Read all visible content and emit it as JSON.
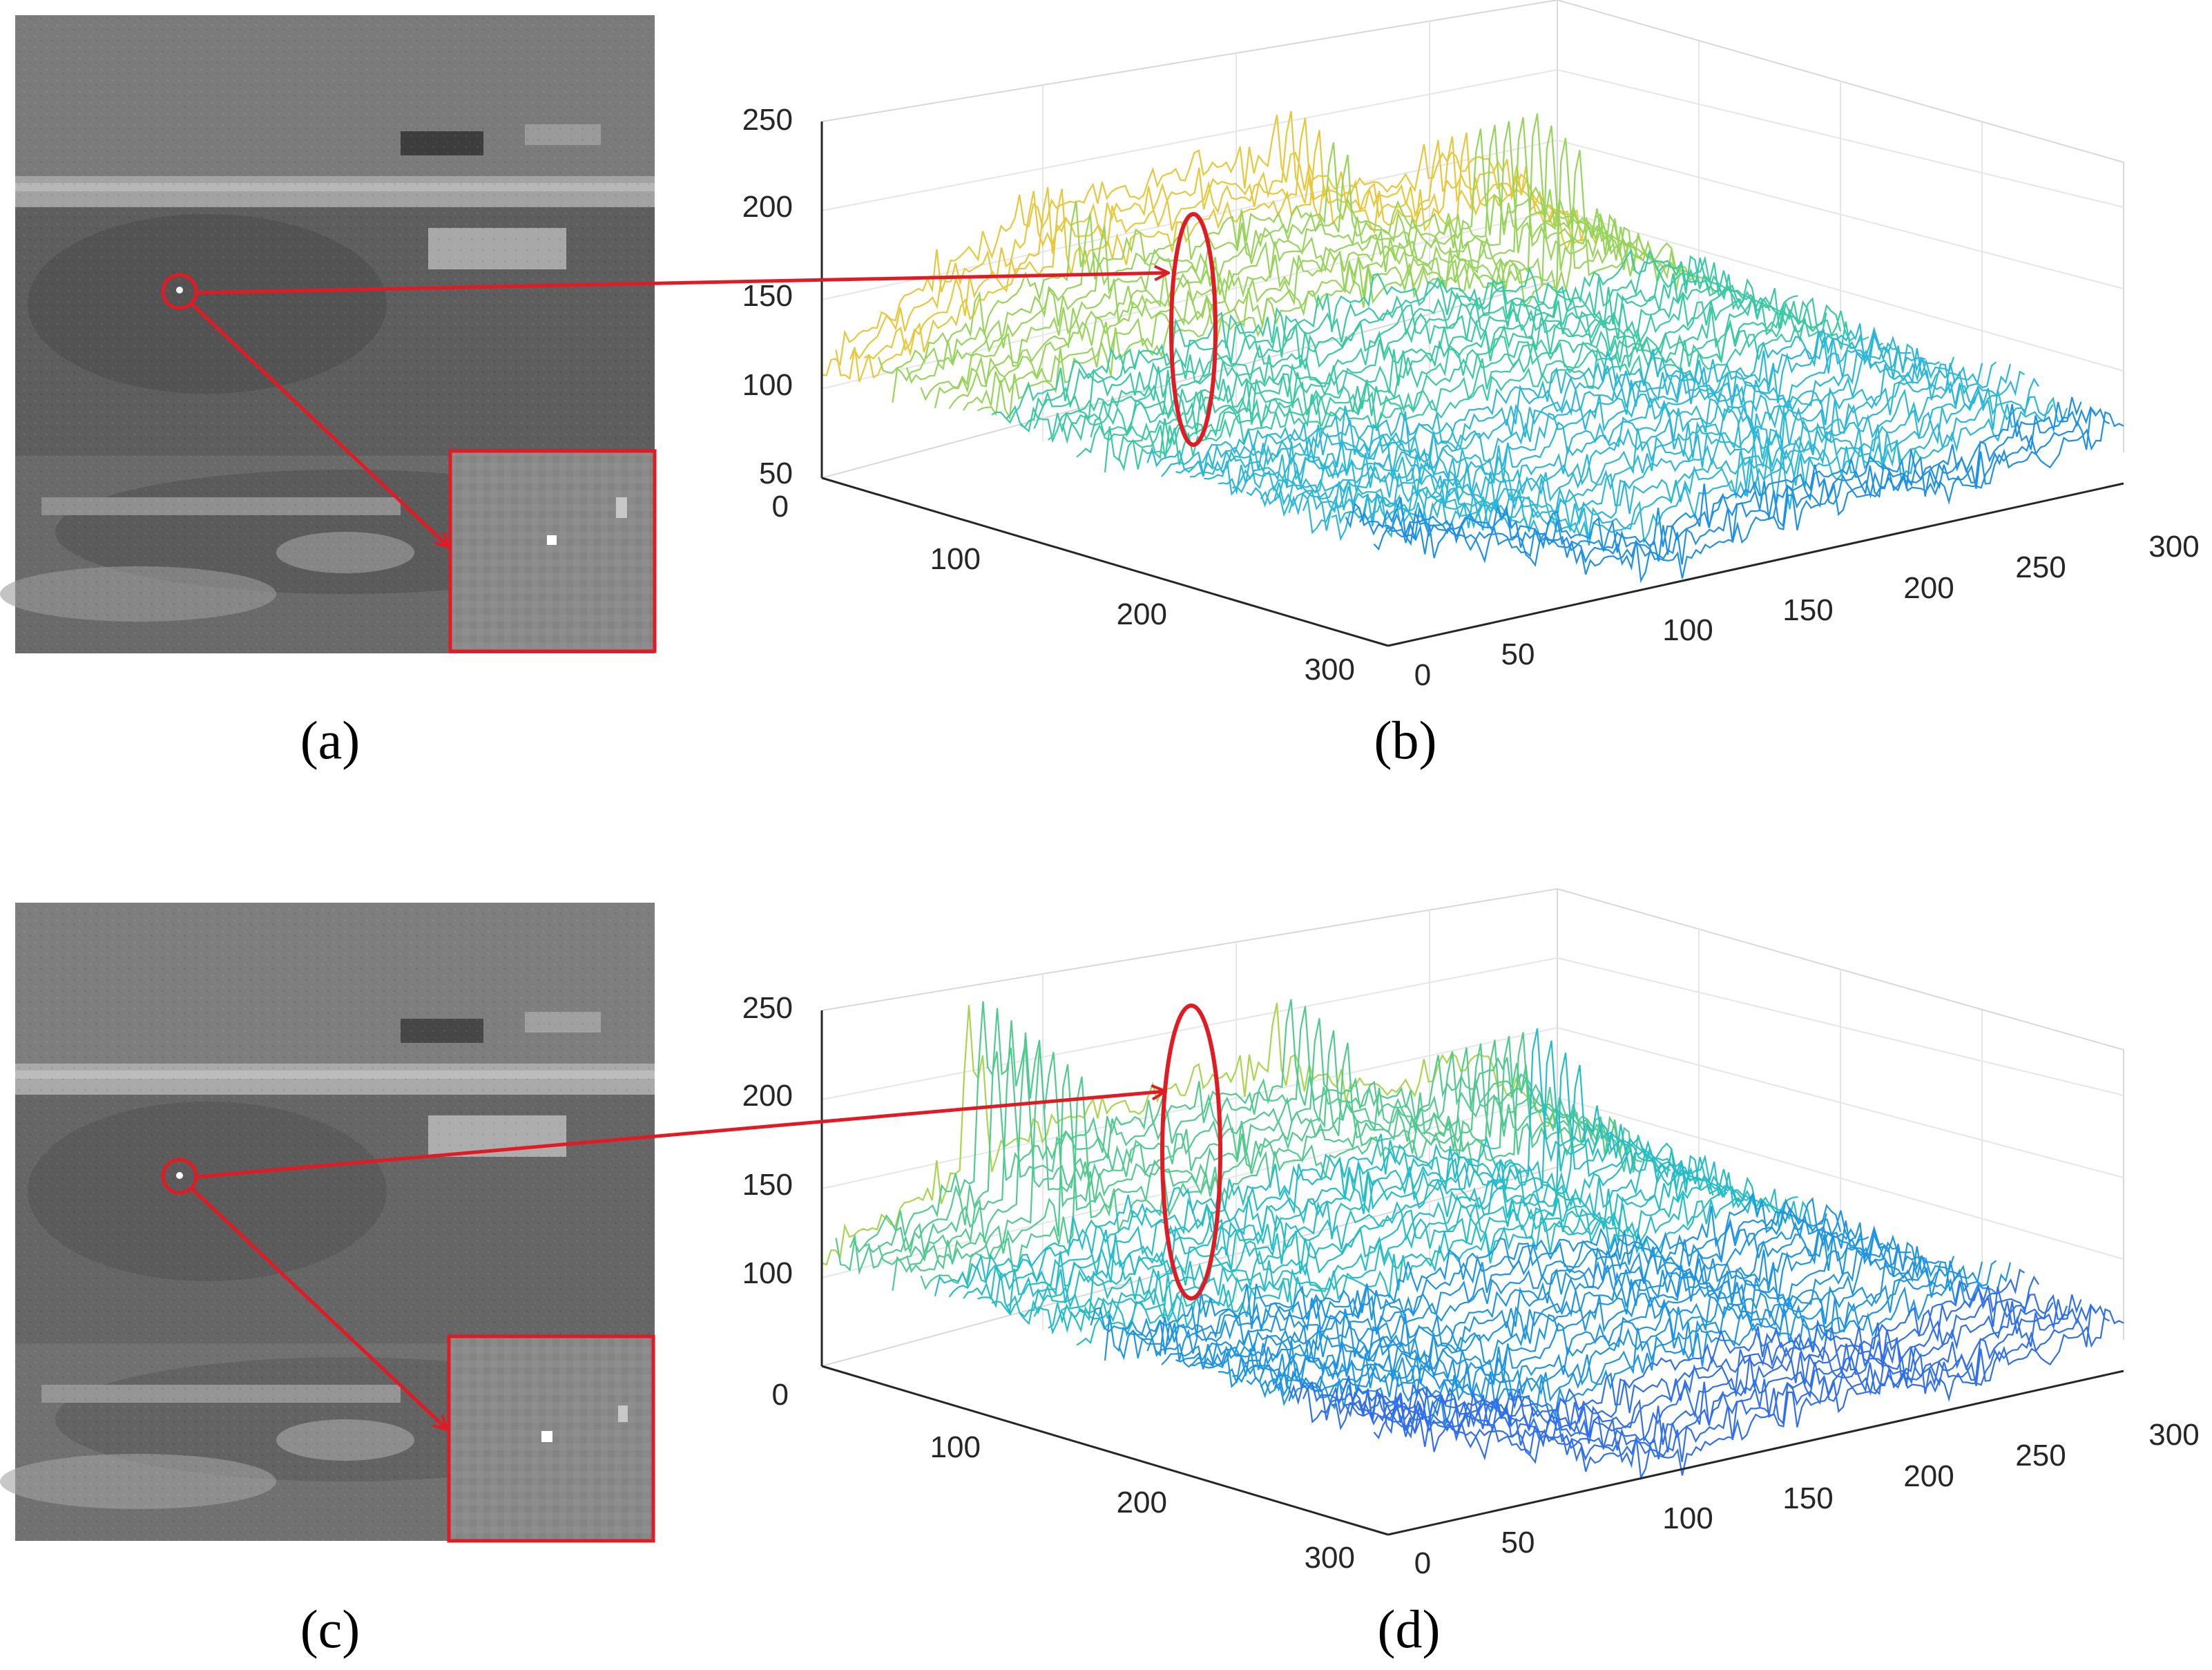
{
  "colors": {
    "annotation": "#e01b24",
    "box": "#9a9a9a",
    "tick_text": "#262626",
    "mesh_b": [
      "#1e90e6",
      "#2bb8d8",
      "#39c9a3",
      "#97d45a",
      "#e6c83a",
      "#f2c12e"
    ],
    "mesh_d": [
      "#2f6ff0",
      "#1e95e4",
      "#25bdc7",
      "#51ca8f",
      "#a9d54c",
      "#e4c933"
    ]
  },
  "panels": [
    {
      "id": "a",
      "caption": "(a)",
      "type": "infrared-image",
      "description": "grayscale infrared scene with small bright target circled and a magnified inset"
    },
    {
      "id": "b",
      "caption": "(b)",
      "type": "3d-mesh",
      "z_ticks": [
        "50",
        "100",
        "150",
        "200",
        "250"
      ],
      "row_ticks": [
        "0",
        "100",
        "200",
        "300"
      ],
      "col_ticks": [
        "0",
        "50",
        "100",
        "150",
        "200",
        "250",
        "300"
      ]
    },
    {
      "id": "c",
      "caption": "(c)",
      "type": "infrared-image",
      "description": "processed infrared scene with the small bright target circled and a magnified inset"
    },
    {
      "id": "d",
      "caption": "(d)",
      "type": "3d-mesh",
      "z_ticks": [
        "100",
        "150",
        "200",
        "250"
      ],
      "row_ticks": [
        "0",
        "100",
        "200",
        "300"
      ],
      "col_ticks": [
        "0",
        "50",
        "100",
        "150",
        "200",
        "250",
        "300"
      ]
    }
  ],
  "chart_data": [
    {
      "panel": "b",
      "type": "surface",
      "title": "",
      "xlabel": "",
      "ylabel": "",
      "zlabel": "",
      "x_range": [
        0,
        300
      ],
      "y_range": [
        0,
        300
      ],
      "z_range": [
        50,
        250
      ],
      "z_ticks": [
        50,
        100,
        150,
        200,
        250
      ],
      "grid": true,
      "profile": {
        "col": [
          0,
          30,
          60,
          90,
          120,
          150,
          180,
          210,
          240,
          270,
          300
        ],
        "back_row_level": [
          115,
          140,
          165,
          180,
          185,
          190,
          185,
          170,
          160,
          170,
          125
        ],
        "front_row_level": [
          112,
          105,
          95,
          80,
          70,
          85,
          90,
          90,
          85,
          100,
          105
        ]
      },
      "peaks": [
        {
          "col": 80,
          "row": 20,
          "value": 215
        },
        {
          "col": 185,
          "row": 10,
          "value": 230
        },
        {
          "col": 245,
          "row": 60,
          "value": 230
        }
      ],
      "dips": [
        {
          "col": 210,
          "row": 230,
          "value": 60
        }
      ]
    },
    {
      "panel": "d",
      "type": "surface",
      "title": "",
      "xlabel": "",
      "ylabel": "",
      "zlabel": "",
      "x_range": [
        0,
        300
      ],
      "y_range": [
        0,
        300
      ],
      "z_range": [
        50,
        250
      ],
      "z_ticks": [
        100,
        150,
        200,
        250
      ],
      "grid": true,
      "profile": {
        "col": [
          0,
          30,
          60,
          90,
          120,
          150,
          180,
          210,
          240,
          270,
          300
        ],
        "back_row_level": [
          115,
          130,
          150,
          165,
          170,
          175,
          175,
          165,
          150,
          165,
          115
        ],
        "front_row_level": [
          112,
          100,
          90,
          75,
          65,
          80,
          85,
          85,
          80,
          95,
          100
        ]
      },
      "peaks": [
        {
          "col": 60,
          "row": 10,
          "value": 245
        },
        {
          "col": 65,
          "row": 30,
          "value": 240
        },
        {
          "col": 185,
          "row": 10,
          "value": 230
        },
        {
          "col": 245,
          "row": 60,
          "value": 215
        }
      ],
      "dips": [
        {
          "col": 70,
          "row": 240,
          "value": 70
        }
      ]
    }
  ]
}
